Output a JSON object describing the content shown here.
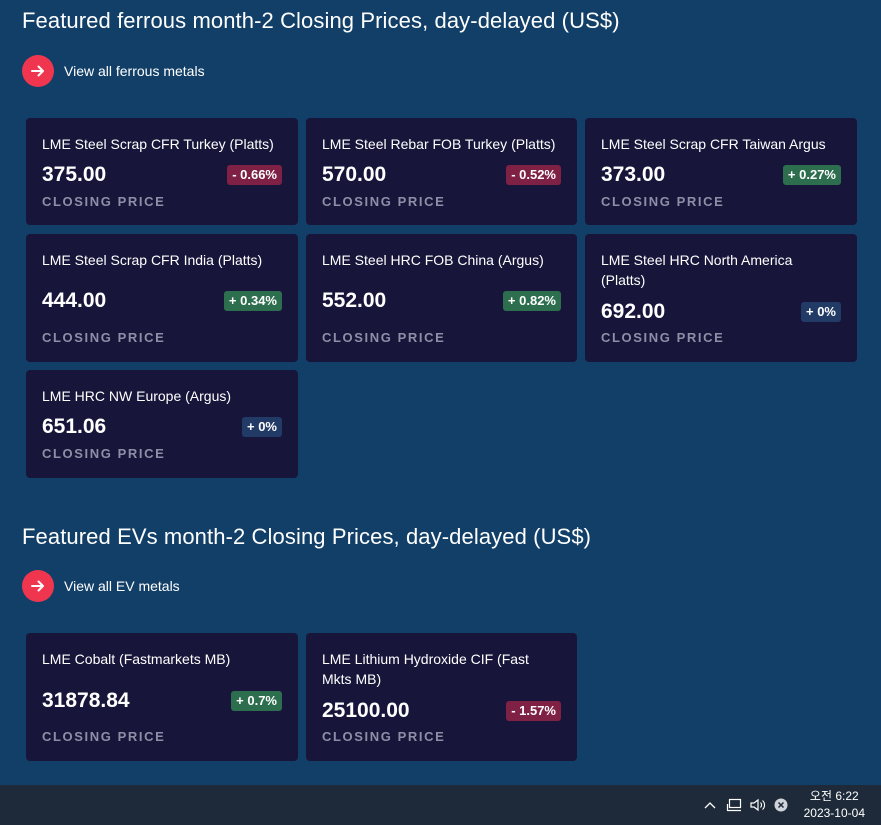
{
  "ferrous": {
    "title": "Featured ferrous month-2 Closing Prices, day-delayed (US$)",
    "view_all": "View all ferrous metals",
    "cards": [
      {
        "name": "LME Steel Scrap CFR Turkey (Platts)",
        "price": "375.00",
        "change": "- 0.66%",
        "trend": "negative",
        "caption": "CLOSING PRICE"
      },
      {
        "name": "LME Steel Rebar FOB Turkey (Platts)",
        "price": "570.00",
        "change": "- 0.52%",
        "trend": "negative",
        "caption": "CLOSING PRICE"
      },
      {
        "name": "LME Steel Scrap CFR Taiwan Argus",
        "price": "373.00",
        "change": "+ 0.27%",
        "trend": "positive",
        "caption": "CLOSING PRICE"
      },
      {
        "name": "LME Steel Scrap CFR India (Platts)",
        "price": "444.00",
        "change": "+ 0.34%",
        "trend": "positive",
        "caption": "CLOSING PRICE"
      },
      {
        "name": "LME Steel HRC FOB China (Argus)",
        "price": "552.00",
        "change": "+ 0.82%",
        "trend": "positive",
        "caption": "CLOSING PRICE"
      },
      {
        "name": "LME Steel HRC North America (Platts)",
        "price": "692.00",
        "change": "+ 0%",
        "trend": "flat",
        "caption": "CLOSING PRICE"
      },
      {
        "name": "LME HRC NW Europe (Argus)",
        "price": "651.06",
        "change": "+ 0%",
        "trend": "flat",
        "caption": "CLOSING PRICE"
      }
    ]
  },
  "ev": {
    "title": "Featured EVs month-2 Closing Prices, day-delayed (US$)",
    "view_all": "View all EV metals",
    "cards": [
      {
        "name": "LME Cobalt (Fastmarkets MB)",
        "price": "31878.84",
        "change": "+ 0.7%",
        "trend": "positive",
        "caption": "CLOSING PRICE"
      },
      {
        "name": "LME Lithium Hydroxide CIF (Fast Mkts MB)",
        "price": "25100.00",
        "change": "- 1.57%",
        "trend": "negative",
        "caption": "CLOSING PRICE"
      }
    ]
  },
  "taskbar": {
    "time": "오전 6:22",
    "date": "2023-10-04"
  },
  "colors": {
    "background": "#123f67",
    "card": "#17163a",
    "accent": "#f0364f",
    "negative_badge": "#7e2144",
    "positive_badge": "#2c6e4e",
    "flat_badge": "#223a66"
  }
}
